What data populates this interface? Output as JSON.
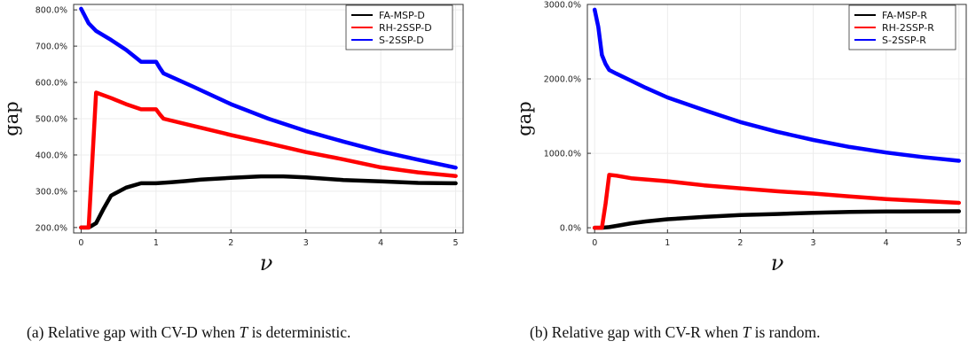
{
  "chart_data": [
    {
      "type": "line",
      "xlabel": "ν",
      "ylabel": "gap",
      "xlim": [
        -0.1,
        5.1
      ],
      "ylim": [
        185,
        815
      ],
      "x_ticks": [
        0,
        1,
        2,
        3,
        4,
        5
      ],
      "x_tick_labels": [
        "0",
        "1",
        "2",
        "3",
        "4",
        "5"
      ],
      "y_ticks": [
        200,
        300,
        400,
        500,
        600,
        700,
        800
      ],
      "y_tick_labels": [
        "200.0%",
        "300.0%",
        "400.0%",
        "500.0%",
        "600.0%",
        "700.0%",
        "800.0%"
      ],
      "grid": true,
      "legend_position": "top-right",
      "caption": {
        "label": "(a)",
        "text_before": "Relative gap with CV-D when",
        "italic": "T",
        "text_after": "is deterministic."
      },
      "series": [
        {
          "name": "FA-MSP-D",
          "color": "#000000",
          "x": [
            0,
            0.1,
            0.2,
            0.3,
            0.4,
            0.6,
            0.8,
            1.0,
            1.2,
            1.4,
            1.6,
            2.0,
            2.4,
            2.7,
            3.0,
            3.5,
            4.0,
            4.5,
            5.0
          ],
          "y": [
            200,
            200,
            212,
            252,
            288,
            310,
            322,
            322,
            325,
            328,
            332,
            337,
            341,
            341,
            338,
            331,
            327,
            323,
            322
          ]
        },
        {
          "name": "RH-2SSP-D",
          "color": "#ff0000",
          "x": [
            0,
            0.1,
            0.2,
            0.4,
            0.6,
            0.8,
            1.0,
            1.05,
            1.1,
            1.5,
            2.0,
            2.5,
            3.0,
            3.5,
            4.0,
            4.5,
            5.0
          ],
          "y": [
            200,
            200,
            572,
            557,
            540,
            526,
            526,
            512,
            500,
            480,
            455,
            432,
            408,
            388,
            366,
            352,
            342
          ]
        },
        {
          "name": "S-2SSP-D",
          "color": "#0000ff",
          "x": [
            0,
            0.1,
            0.2,
            0.4,
            0.6,
            0.8,
            1.0,
            1.05,
            1.1,
            1.5,
            2.0,
            2.5,
            3.0,
            3.5,
            4.0,
            4.5,
            5.0
          ],
          "y": [
            803,
            763,
            742,
            717,
            690,
            657,
            657,
            640,
            625,
            588,
            540,
            500,
            466,
            437,
            410,
            387,
            365
          ]
        }
      ]
    },
    {
      "type": "line",
      "xlabel": "ν",
      "ylabel": "gap",
      "xlim": [
        -0.1,
        5.1
      ],
      "ylim": [
        -70,
        3000
      ],
      "x_ticks": [
        0,
        1,
        2,
        3,
        4,
        5
      ],
      "x_tick_labels": [
        "0",
        "1",
        "2",
        "3",
        "4",
        "5"
      ],
      "y_ticks": [
        0,
        1000,
        2000,
        3000
      ],
      "y_tick_labels": [
        "0.0%",
        "1000.0%",
        "2000.0%",
        "3000.0%"
      ],
      "grid": true,
      "legend_position": "top-right",
      "caption": {
        "label": "(b)",
        "text_before": "Relative gap with CV-R when",
        "italic": "T",
        "text_after": "is random."
      },
      "series": [
        {
          "name": "FA-MSP-R",
          "color": "#000000",
          "x": [
            0,
            0.1,
            0.2,
            0.3,
            0.5,
            0.7,
            1.0,
            1.5,
            2.0,
            2.5,
            3.0,
            3.5,
            4.0,
            4.5,
            5.0
          ],
          "y": [
            0,
            0,
            8,
            25,
            60,
            85,
            115,
            145,
            170,
            185,
            200,
            212,
            218,
            220,
            222
          ]
        },
        {
          "name": "RH-2SSP-R",
          "color": "#ff0000",
          "x": [
            0,
            0.1,
            0.15,
            0.2,
            0.3,
            0.5,
            1.0,
            1.5,
            2.0,
            2.5,
            3.0,
            3.5,
            4.0,
            4.5,
            5.0
          ],
          "y": [
            0,
            0,
            320,
            710,
            700,
            665,
            625,
            570,
            530,
            490,
            460,
            420,
            385,
            360,
            335
          ]
        },
        {
          "name": "S-2SSP-R",
          "color": "#0000ff",
          "x": [
            0,
            0.05,
            0.1,
            0.15,
            0.2,
            0.3,
            0.5,
            0.7,
            1.0,
            1.5,
            2.0,
            2.5,
            3.0,
            3.5,
            4.0,
            4.5,
            5.0
          ],
          "y": [
            2930,
            2700,
            2320,
            2200,
            2120,
            2070,
            1975,
            1880,
            1750,
            1580,
            1420,
            1290,
            1180,
            1085,
            1010,
            950,
            900
          ]
        }
      ]
    }
  ]
}
